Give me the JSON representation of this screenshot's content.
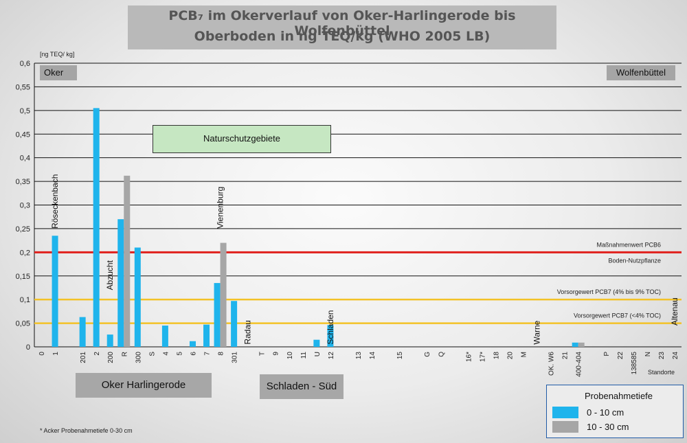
{
  "title_line1": "PCB₇ im Okerverlauf von Oker-Harlingerode bis Wolfenbüttel",
  "title_line2": "Oberboden in ng TEQ/kg (WHO 2005 LB)",
  "unit_label": "[ng TEQ/ kg]",
  "corner_left": "Oker",
  "corner_right": "Wolfenbüttel",
  "nature_box": "Naturschutzgebiete",
  "region_left": "Oker Harlingerode",
  "region_right": "Schladen - Süd",
  "legend": {
    "title": "Probenahmetiefe",
    "items": [
      {
        "label": "0 - 10 cm",
        "color": "#1fb4ec"
      },
      {
        "label": "10 - 30 cm",
        "color": "#a6a6a6"
      }
    ]
  },
  "footnote": "* Acker Probenahmetiefe 0-30 cm",
  "colors": {
    "series_0_10": "#1fb4ec",
    "series_10_30": "#a6a6a6",
    "red_line": "#e0201c",
    "yellow_line": "#f3c227"
  },
  "chart_data": {
    "type": "bar",
    "ylim": [
      0,
      0.6
    ],
    "y_ticks": [
      "0",
      "0,05",
      "0,1",
      "0,15",
      "0,2",
      "0,25",
      "0,3",
      "0,35",
      "0,4",
      "0,45",
      "0,5",
      "0,55",
      "0,6"
    ],
    "categories": [
      "0",
      "1",
      "",
      "201",
      "2",
      "200",
      "R",
      "300",
      "S",
      "4",
      "5",
      "6",
      "7",
      "8",
      "301",
      "",
      "T",
      "9",
      "10",
      "11",
      "U",
      "12",
      "",
      "13",
      "14",
      "",
      "15",
      "",
      "G",
      "Q",
      "",
      "16*",
      "17*",
      "18",
      "20",
      "M",
      "",
      "OK. W6",
      "21",
      "400-404",
      "",
      "P",
      "22",
      "138585",
      "N",
      "23",
      "24"
    ],
    "x_axis_end_label": "Standorte",
    "series": [
      {
        "values": [
          0,
          0.235,
          0,
          0.063,
          0.505,
          0.026,
          0.27,
          0.21,
          0,
          0.045,
          0,
          0.012,
          0.047,
          0.135,
          0.097,
          0,
          0,
          0,
          0,
          0,
          0.015,
          0.046,
          0,
          0,
          0,
          0,
          0,
          0,
          0,
          0,
          0,
          0,
          0,
          0,
          0,
          0,
          0,
          0,
          0,
          0.009,
          0,
          0,
          0,
          0,
          0,
          0,
          0
        ]
      },
      {
        "values": [
          0,
          0,
          0,
          0,
          0,
          0,
          0.362,
          0,
          0,
          0,
          0,
          0,
          0,
          0.22,
          0,
          0,
          0,
          0,
          0,
          0,
          0,
          0,
          0,
          0,
          0,
          0,
          0,
          0,
          0,
          0,
          0,
          0,
          0,
          0,
          0,
          0,
          0,
          0,
          0,
          0.009,
          0,
          0,
          0,
          0,
          0,
          0,
          0
        ]
      }
    ],
    "reference_lines": [
      {
        "y": 0.2,
        "label_above": "Maßnahmenwert PCB6",
        "label_below": "Boden-Nutzpflanze",
        "color": "#e0201c"
      },
      {
        "y": 0.1,
        "label_above": "Vorsorgewert PCB7 (4% bis 9% TOC)",
        "color": "#f3c227"
      },
      {
        "y": 0.05,
        "label_above": "Vorsorgewert PCB7 (<4% TOC)",
        "color": "#f3c227"
      }
    ],
    "annotations": [
      {
        "text": "Röseckenbach",
        "cat": 1,
        "y": 0.25
      },
      {
        "text": "Abzucht",
        "cat": 5,
        "y": 0.12
      },
      {
        "text": "Vienenburg",
        "cat": 13,
        "y": 0.25
      },
      {
        "text": "Radau",
        "cat": 15,
        "y": 0.005
      },
      {
        "text": "Schladen",
        "cat": 21,
        "y": 0.005
      },
      {
        "text": "Warne",
        "cat": 36,
        "y": 0.005
      },
      {
        "text": "Altenau",
        "cat": 46,
        "y": 0.045
      }
    ]
  }
}
